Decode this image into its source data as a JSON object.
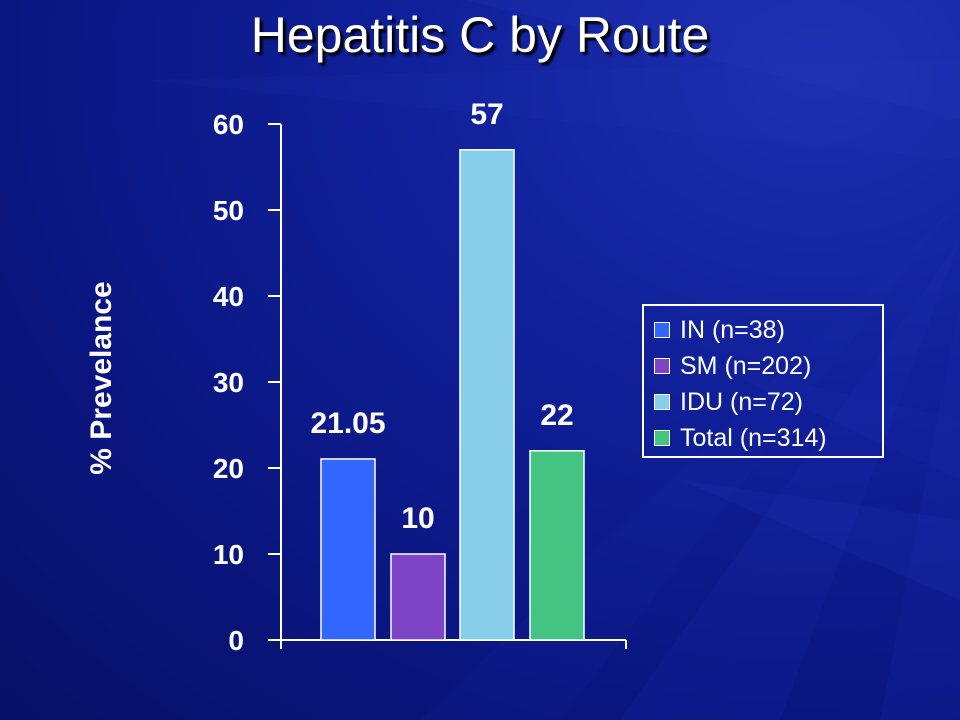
{
  "slide": {
    "title": "Hepatitis C by Route"
  },
  "colors": {
    "background": "#0d1a8a",
    "axis": "#ffffff",
    "text": "#ffffff"
  },
  "chart_data": {
    "type": "bar",
    "title": "Hepatitis C by Route",
    "xlabel": "",
    "ylabel": "% Prevelance",
    "ylim": [
      0,
      60
    ],
    "yticks": [
      0,
      10,
      20,
      30,
      40,
      50,
      60
    ],
    "grid": false,
    "legend_position": "right",
    "series": [
      {
        "name": "IN (n=38)",
        "value": 21.05,
        "label": "21.05",
        "color": "#3366ff"
      },
      {
        "name": "SM (n=202)",
        "value": 10,
        "label": "10",
        "color": "#7e44c8"
      },
      {
        "name": "IDU (n=72)",
        "value": 57,
        "label": "57",
        "color": "#87ceeb"
      },
      {
        "name": "Total (n=314)",
        "value": 22,
        "label": "22",
        "color": "#44c482"
      }
    ]
  }
}
